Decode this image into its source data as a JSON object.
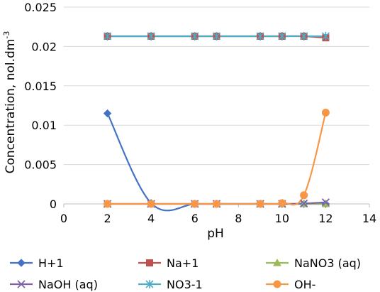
{
  "chart_data": {
    "type": "line",
    "title": "",
    "xlabel": "pH",
    "ylabel": "Concentration, nol.dm",
    "ylabel_sup": "-3",
    "xlim": [
      0,
      14
    ],
    "ylim": [
      0,
      0.025
    ],
    "xticks": [
      "0",
      "2",
      "4",
      "6",
      "8",
      "10",
      "12",
      "14"
    ],
    "yticks": [
      "0",
      "0.005",
      "0.01",
      "0.015",
      "0.02",
      "0.025"
    ],
    "grid": "horizontal",
    "legend_position": "bottom",
    "x": [
      2,
      4,
      6,
      7,
      9,
      10,
      11,
      12
    ],
    "series": [
      {
        "name": "H+1",
        "color": "#4472C4",
        "marker": "diamond",
        "values": [
          0.0115,
          0.0001,
          0.0,
          0.0,
          0.0,
          0.0,
          0.0,
          0.0
        ]
      },
      {
        "name": "Na+1",
        "color": "#C0504D",
        "marker": "square",
        "values": [
          0.0213,
          0.0213,
          0.0213,
          0.0213,
          0.0213,
          0.0213,
          0.0213,
          0.0211
        ]
      },
      {
        "name": "NaNO3 (aq)",
        "color": "#9BBB59",
        "marker": "triangle",
        "values": [
          0.0,
          0.0,
          0.0,
          0.0,
          0.0,
          0.0,
          0.0,
          0.0
        ]
      },
      {
        "name": "NaOH (aq)",
        "color": "#7F62A8",
        "marker": "x",
        "values": [
          0.0,
          0.0,
          0.0,
          0.0,
          0.0,
          0.0,
          5e-05,
          0.0002
        ]
      },
      {
        "name": "NO3-1",
        "color": "#4BACC6",
        "marker": "star",
        "values": [
          0.0213,
          0.0213,
          0.0213,
          0.0213,
          0.0213,
          0.0213,
          0.0213,
          0.0213
        ]
      },
      {
        "name": "OH-",
        "color": "#F79646",
        "marker": "circle",
        "values": [
          0.0,
          0.0,
          0.0,
          0.0,
          0.0,
          0.0001,
          0.0011,
          0.0116
        ]
      }
    ]
  }
}
